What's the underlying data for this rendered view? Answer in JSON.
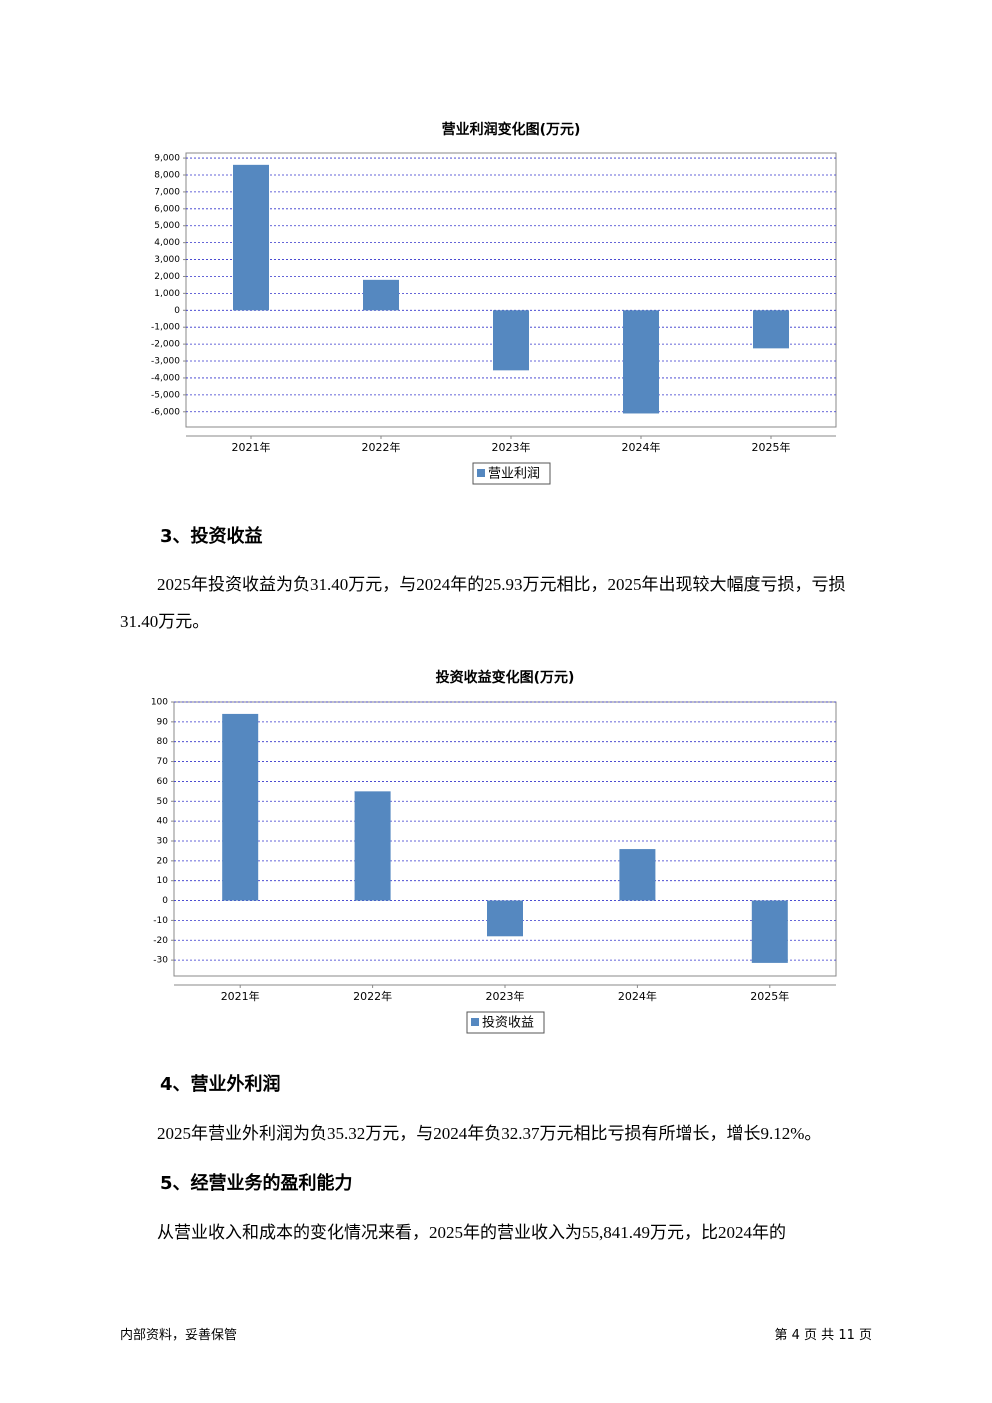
{
  "chart_data": [
    {
      "type": "bar",
      "title": "营业利润变化图(万元)",
      "categories": [
        "2021年",
        "2022年",
        "2023年",
        "2024年",
        "2025年"
      ],
      "series": [
        {
          "name": "营业利润",
          "color": "#5588c0",
          "values": [
            8600,
            1800,
            -3550,
            -6100,
            -2250
          ]
        }
      ],
      "ylim": [
        -6900,
        9300
      ],
      "yticks": [
        {
          "value": 9000,
          "label": "9,000"
        },
        {
          "value": 8000,
          "label": "8,000"
        },
        {
          "value": 7000,
          "label": "7,000"
        },
        {
          "value": 6000,
          "label": "6,000"
        },
        {
          "value": 5000,
          "label": "5,000"
        },
        {
          "value": 4000,
          "label": "4,000"
        },
        {
          "value": 3000,
          "label": "3,000"
        },
        {
          "value": 2000,
          "label": "2,000"
        },
        {
          "value": 1000,
          "label": "1,000"
        },
        0,
        {
          "value": -1000,
          "label": "-1,000"
        },
        {
          "value": -2000,
          "label": "-2,000"
        },
        {
          "value": -3000,
          "label": "-3,000"
        },
        {
          "value": -4000,
          "label": "-4,000"
        },
        {
          "value": -5000,
          "label": "-5,000"
        },
        {
          "value": -6000,
          "label": "-6,000"
        }
      ],
      "grid": true
    },
    {
      "type": "bar",
      "title": "投资收益变化图(万元)",
      "categories": [
        "2021年",
        "2022年",
        "2023年",
        "2024年",
        "2025年"
      ],
      "series": [
        {
          "name": "投资收益",
          "color": "#5588c0",
          "values": [
            94,
            55,
            -18,
            25.93,
            -31.4
          ]
        }
      ],
      "ylim": [
        -38,
        100
      ],
      "yticks": [
        100,
        90,
        80,
        70,
        60,
        50,
        40,
        30,
        20,
        10,
        0,
        -10,
        -20,
        -30
      ],
      "grid": true
    }
  ],
  "sections": [
    {
      "heading": "3、投资收益",
      "paragraphs": [
        "2025年投资收益为负31.40万元，与2024年的25.93万元相比，2025年出现较大幅度亏损，亏损31.40万元。"
      ]
    },
    {
      "heading": "4、营业外利润",
      "paragraphs": [
        "2025年营业外利润为负35.32万元，与2024年负32.37万元相比亏损有所增长，增长9.12%。"
      ]
    },
    {
      "heading": "5、经营业务的盈利能力",
      "paragraphs": [
        "从营业收入和成本的变化情况来看，2025年的营业收入为55,841.49万元，比2024年的"
      ]
    }
  ],
  "footer": {
    "left": "内部资料，妥善保管",
    "right": "第 4 页 共 11 页"
  }
}
